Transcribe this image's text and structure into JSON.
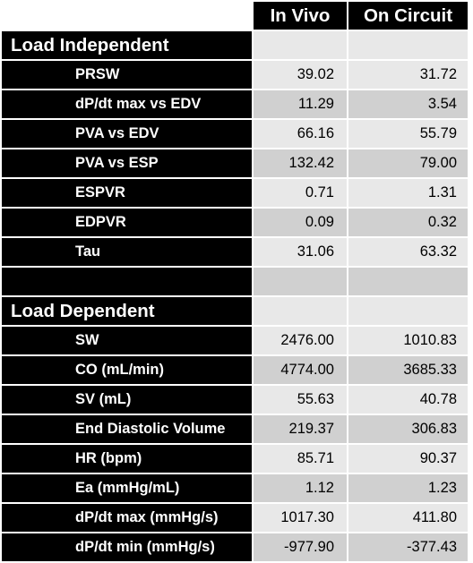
{
  "columns": [
    "In Vivo",
    "On Circuit"
  ],
  "sections": [
    {
      "title": "Load Independent",
      "rows": [
        {
          "label": "PRSW",
          "in_vivo": "39.02",
          "on_circuit": "31.72"
        },
        {
          "label": "dP/dt max vs EDV",
          "in_vivo": "11.29",
          "on_circuit": "3.54"
        },
        {
          "label": "PVA vs EDV",
          "in_vivo": "66.16",
          "on_circuit": "55.79"
        },
        {
          "label": "PVA vs ESP",
          "in_vivo": "132.42",
          "on_circuit": "79.00"
        },
        {
          "label": "ESPVR",
          "in_vivo": "0.71",
          "on_circuit": "1.31"
        },
        {
          "label": "EDPVR",
          "in_vivo": "0.09",
          "on_circuit": "0.32"
        },
        {
          "label": "Tau",
          "in_vivo": "31.06",
          "on_circuit": "63.32"
        }
      ]
    },
    {
      "title": "Load Dependent",
      "rows": [
        {
          "label": "SW",
          "in_vivo": "2476.00",
          "on_circuit": "1010.83"
        },
        {
          "label": "CO (mL/min)",
          "in_vivo": "4774.00",
          "on_circuit": "3685.33"
        },
        {
          "label": "SV (mL)",
          "in_vivo": "55.63",
          "on_circuit": "40.78"
        },
        {
          "label": "End Diastolic Volume",
          "in_vivo": "219.37",
          "on_circuit": "306.83"
        },
        {
          "label": "HR (bpm)",
          "in_vivo": "85.71",
          "on_circuit": "90.37"
        },
        {
          "label": "Ea (mmHg/mL)",
          "in_vivo": "1.12",
          "on_circuit": "1.23"
        },
        {
          "label": "dP/dt max (mmHg/s)",
          "in_vivo": "1017.30",
          "on_circuit": "411.80"
        },
        {
          "label": "dP/dt min (mmHg/s)",
          "in_vivo": "-977.90",
          "on_circuit": "-377.43"
        }
      ]
    }
  ]
}
